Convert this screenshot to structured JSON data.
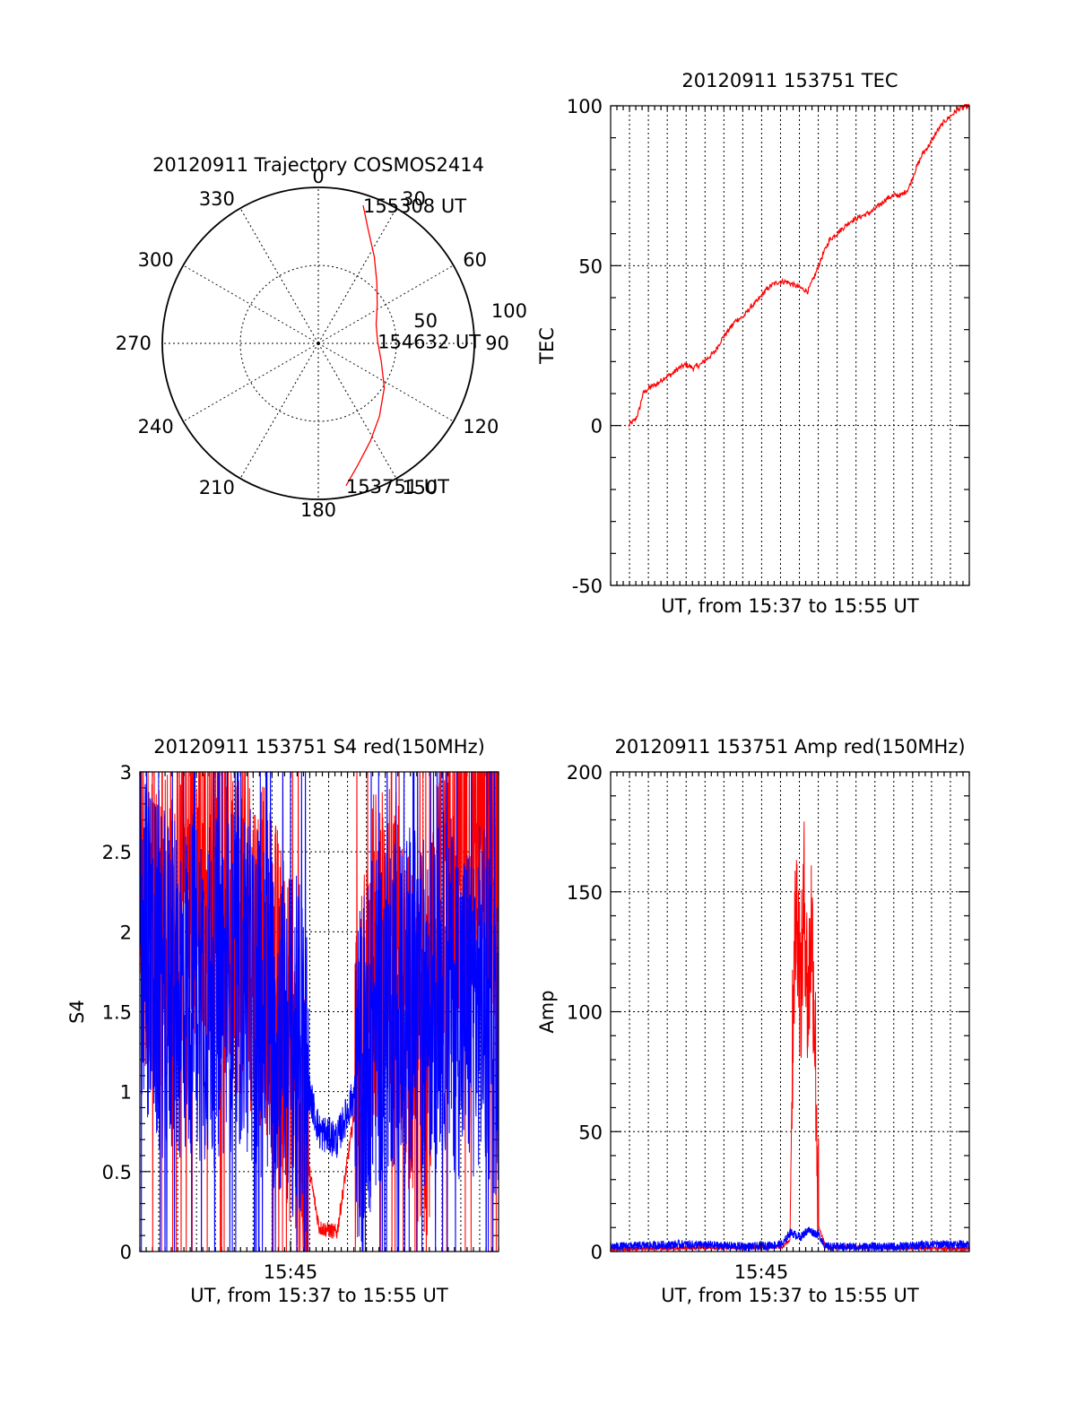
{
  "chart_data": [
    {
      "type": "polar",
      "title": "20120911 Trajectory COSMOS2414",
      "azimuth_labels": [
        "0",
        "30",
        "60",
        "90",
        "120",
        "150",
        "180",
        "210",
        "240",
        "270",
        "300",
        "330"
      ],
      "radius_labels": [
        "50",
        "100"
      ],
      "series": [
        {
          "color": "#ff0000",
          "azimuth": [
            169,
            162,
            152,
            140,
            124,
            106,
            88,
            72,
            57,
            44,
            33,
            24,
            18
          ],
          "distance": [
            93,
            82,
            71,
            61,
            51,
            42,
            38,
            39,
            45,
            54,
            66,
            79,
            93
          ]
        }
      ],
      "annotations": [
        {
          "text": "155308 UT",
          "azimuth": 18,
          "distance": 93
        },
        {
          "text": "154632 UT",
          "azimuth": 88,
          "distance": 38
        },
        {
          "text": "153751 UT",
          "azimuth": 169,
          "distance": 93
        }
      ]
    },
    {
      "type": "line",
      "title": "20120911 153751 TEC",
      "xlabel": "UT, from 15:37 to 15:55 UT",
      "ylabel": "TEC",
      "xlim": [
        0,
        1
      ],
      "ylim": [
        -50,
        100
      ],
      "yticks": [
        "-50",
        "0",
        "50",
        "100"
      ],
      "grid": true,
      "series": [
        {
          "color": "#ff0000",
          "x": [
            0.05,
            0.07,
            0.08,
            0.09,
            0.11,
            0.13,
            0.15,
            0.17,
            0.19,
            0.21,
            0.23,
            0.25,
            0.27,
            0.29,
            0.31,
            0.33,
            0.35,
            0.37,
            0.39,
            0.41,
            0.43,
            0.45,
            0.47,
            0.49,
            0.51,
            0.53,
            0.55,
            0.57,
            0.59,
            0.61,
            0.63,
            0.65,
            0.67,
            0.69,
            0.71,
            0.73,
            0.75,
            0.77,
            0.79,
            0.81,
            0.83,
            0.85,
            0.87,
            0.89,
            0.91,
            0.93,
            0.95,
            0.97,
            1.0
          ],
          "y": [
            0,
            2,
            5,
            10,
            12,
            13,
            15,
            16,
            18,
            19,
            18,
            19,
            21,
            23,
            27,
            30,
            33,
            34,
            37,
            39,
            42,
            44,
            45,
            45,
            44,
            43,
            42,
            47,
            53,
            58,
            60,
            62,
            64,
            65,
            66,
            67,
            69,
            71,
            72,
            72,
            74,
            80,
            85,
            88,
            92,
            95,
            97,
            99,
            100
          ]
        }
      ]
    },
    {
      "type": "line",
      "title": "20120911 153751 S4 red(150MHz)",
      "xlabel": "UT, from 15:37 to 15:55 UT",
      "ylabel": "S4",
      "xlim": [
        0,
        1
      ],
      "ylim": [
        0,
        3
      ],
      "yticks": [
        "0",
        "0.5",
        "1",
        "1.5",
        "2",
        "2.5",
        "3"
      ],
      "xtick_labels": [
        {
          "x": 0.42,
          "label": "15:45"
        }
      ],
      "grid": true,
      "series": [
        {
          "color": "#ff0000",
          "x": [
            0.0,
            0.05,
            0.1,
            0.15,
            0.2,
            0.25,
            0.3,
            0.35,
            0.4,
            0.45,
            0.5,
            0.55,
            0.6,
            0.65,
            0.7,
            0.75,
            0.8,
            0.85,
            0.9,
            0.95,
            1.0
          ],
          "y": [
            2.2,
            2.0,
            2.2,
            2.4,
            2.3,
            2.1,
            2.0,
            1.8,
            1.5,
            0.8,
            0.15,
            0.12,
            0.9,
            1.8,
            2.0,
            1.4,
            1.1,
            2.5,
            2.6,
            2.5,
            2.4
          ]
        },
        {
          "color": "#0000ff",
          "x": [
            0.0,
            0.05,
            0.1,
            0.15,
            0.2,
            0.25,
            0.3,
            0.35,
            0.4,
            0.45,
            0.5,
            0.55,
            0.6,
            0.65,
            0.7,
            0.75,
            0.8,
            0.85,
            0.9,
            0.95,
            1.0
          ],
          "y": [
            2.0,
            1.7,
            1.6,
            1.7,
            1.6,
            1.7,
            1.7,
            1.5,
            1.4,
            1.2,
            0.75,
            0.7,
            1.0,
            1.4,
            1.6,
            1.6,
            1.5,
            1.7,
            1.5,
            1.6,
            1.4
          ]
        }
      ]
    },
    {
      "type": "line",
      "title": "20120911 153751 Amp red(150MHz)",
      "xlabel": "UT, from 15:37 to 15:55 UT",
      "ylabel": "Amp",
      "xlim": [
        0,
        1
      ],
      "ylim": [
        0,
        200
      ],
      "yticks": [
        "0",
        "50",
        "100",
        "150",
        "200"
      ],
      "xtick_labels": [
        {
          "x": 0.42,
          "label": "15:45"
        }
      ],
      "grid": true,
      "series": [
        {
          "color": "#ff0000",
          "x": [
            0.0,
            0.48,
            0.5,
            0.51,
            0.52,
            0.53,
            0.54,
            0.55,
            0.56,
            0.57,
            0.58,
            0.6,
            1.0
          ],
          "y": [
            1,
            2,
            5,
            120,
            145,
            105,
            150,
            100,
            140,
            90,
            10,
            2,
            1
          ]
        },
        {
          "color": "#0000ff",
          "x": [
            0.0,
            0.2,
            0.4,
            0.48,
            0.5,
            0.53,
            0.55,
            0.58,
            0.6,
            0.8,
            0.9,
            1.0
          ],
          "y": [
            2,
            3,
            2,
            3,
            8,
            6,
            9,
            7,
            2,
            2,
            3,
            3
          ]
        }
      ]
    }
  ]
}
